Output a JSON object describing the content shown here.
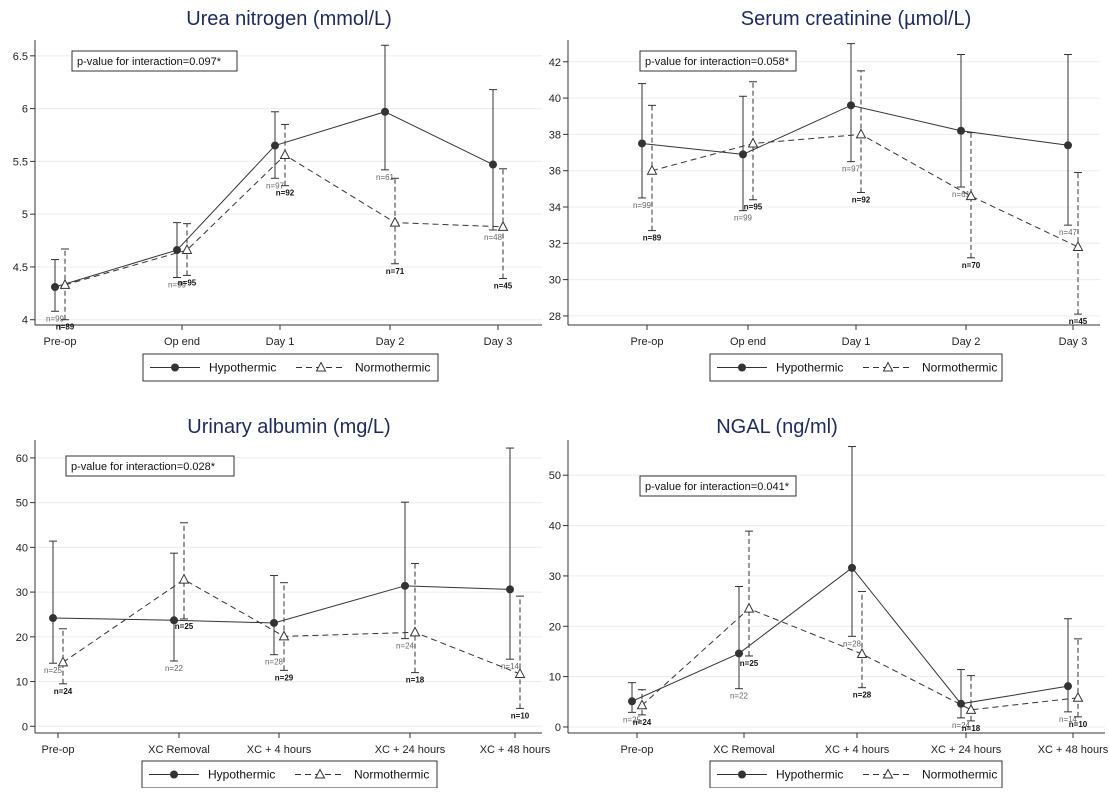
{
  "legend": {
    "hypo_label": "Hypothermic",
    "normo_label": "Normothermic"
  },
  "chart_data": [
    {
      "type": "line",
      "title": "Urea nitrogen (mmol/L)",
      "annotation": "p-value for interaction=0.097*",
      "categories": [
        "Pre-op",
        "Op end",
        "Day 1",
        "Day 2",
        "Day 3"
      ],
      "ylim": [
        3.95,
        6.65
      ],
      "yticks": [
        4,
        4.5,
        5,
        5.5,
        6,
        6.5
      ],
      "ytick_labels": [
        "4",
        "4.5",
        "5",
        "5.5",
        "6",
        "6.5"
      ],
      "grid": true,
      "legend_position": "bottom",
      "series": [
        {
          "name": "Hypothermic",
          "style": "solid",
          "marker": "circle",
          "values": [
            4.31,
            4.66,
            5.65,
            5.97,
            5.47
          ],
          "lower": [
            4.08,
            4.4,
            5.34,
            5.42,
            4.85
          ],
          "upper": [
            4.57,
            4.92,
            5.97,
            6.6,
            6.18
          ],
          "n": [
            "n=99",
            "n=99",
            "n=97",
            "n=61",
            "n=48"
          ]
        },
        {
          "name": "Normothermic",
          "style": "dashed",
          "marker": "triangle",
          "values": [
            4.33,
            4.66,
            5.56,
            4.92,
            4.88
          ],
          "lower": [
            4.0,
            4.42,
            5.27,
            4.53,
            4.39
          ],
          "upper": [
            4.67,
            4.91,
            5.85,
            5.34,
            5.43
          ],
          "n": [
            "n=89",
            "n=95",
            "n=92",
            "n=71",
            "n=45"
          ]
        }
      ]
    },
    {
      "type": "line",
      "title": "Serum creatinine (µmol/L)",
      "annotation": "p-value for interaction=0.058*",
      "categories": [
        "Pre-op",
        "Op end",
        "Day 1",
        "Day 2",
        "Day 3"
      ],
      "ylim": [
        27.5,
        43.2
      ],
      "yticks": [
        28,
        30,
        32,
        34,
        36,
        38,
        40,
        42
      ],
      "ytick_labels": [
        "28",
        "30",
        "32",
        "34",
        "36",
        "38",
        "40",
        "42"
      ],
      "grid": true,
      "legend_position": "bottom",
      "series": [
        {
          "name": "Hypothermic",
          "style": "solid",
          "marker": "circle",
          "values": [
            37.5,
            36.9,
            39.6,
            38.2,
            37.4
          ],
          "lower": [
            34.5,
            33.8,
            36.5,
            35.1,
            33.0
          ],
          "upper": [
            40.8,
            40.1,
            43.0,
            42.4,
            42.4
          ],
          "n": [
            "n=99",
            "n=99",
            "n=97",
            "n=61",
            "n=47"
          ]
        },
        {
          "name": "Normothermic",
          "style": "dashed",
          "marker": "triangle",
          "values": [
            36.0,
            37.5,
            38.0,
            34.6,
            31.8
          ],
          "lower": [
            32.7,
            34.4,
            34.8,
            31.2,
            28.1
          ],
          "upper": [
            39.6,
            40.9,
            41.5,
            38.1,
            35.9
          ],
          "n": [
            "n=89",
            "n=95",
            "n=92",
            "n=70",
            "n=45"
          ]
        }
      ]
    },
    {
      "type": "line",
      "title": "Urinary albumin (mg/L)",
      "annotation": "p-value for interaction=0.028*",
      "categories": [
        "Pre-op",
        "XC Removal",
        "XC + 4 hours",
        "XC + 24 hours",
        "XC + 48 hours"
      ],
      "ylim": [
        -1.5,
        64
      ],
      "yticks": [
        0,
        10,
        20,
        30,
        40,
        50,
        60
      ],
      "ytick_labels": [
        "0",
        "10",
        "20",
        "30",
        "40",
        "50",
        "60"
      ],
      "grid": true,
      "legend_position": "bottom",
      "series": [
        {
          "name": "Hypothermic",
          "style": "solid",
          "marker": "circle",
          "values": [
            24.2,
            23.7,
            23.1,
            31.4,
            30.6
          ],
          "lower": [
            14.1,
            14.6,
            16.0,
            19.6,
            15.0
          ],
          "upper": [
            41.4,
            38.7,
            33.7,
            50.1,
            62.2
          ],
          "n": [
            "n=25",
            "n=22",
            "n=28",
            "n=24",
            "n=14"
          ]
        },
        {
          "name": "Normothermic",
          "style": "dashed",
          "marker": "triangle",
          "values": [
            14.3,
            32.8,
            20.1,
            21.0,
            11.7
          ],
          "lower": [
            9.5,
            24.0,
            12.5,
            12.0,
            4.0
          ],
          "upper": [
            21.8,
            45.5,
            32.1,
            36.4,
            29.1
          ],
          "n": [
            "n=24",
            "n=25",
            "n=29",
            "n=18",
            "n=10"
          ]
        }
      ]
    },
    {
      "type": "line",
      "title": "NGAL (ng/ml)",
      "annotation": "p-value for interaction=0.041*",
      "categories": [
        "Pre-op",
        "XC Removal",
        "XC + 4 hours",
        "XC + 24 hours",
        "XC + 48 hours"
      ],
      "ylim": [
        -1.2,
        57
      ],
      "yticks": [
        0,
        10,
        20,
        30,
        40,
        50
      ],
      "ytick_labels": [
        "0",
        "10",
        "20",
        "30",
        "40",
        "50"
      ],
      "grid": true,
      "legend_position": "bottom",
      "series": [
        {
          "name": "Hypothermic",
          "style": "solid",
          "marker": "circle",
          "values": [
            5.1,
            14.6,
            31.6,
            4.6,
            8.1
          ],
          "lower": [
            2.9,
            7.6,
            18.0,
            1.8,
            3.0
          ],
          "upper": [
            8.8,
            27.9,
            55.7,
            11.4,
            21.5
          ],
          "n": [
            "n=25",
            "n=22",
            "n=28",
            "n=24",
            "n=14"
          ]
        },
        {
          "name": "Normothermic",
          "style": "dashed",
          "marker": "triangle",
          "values": [
            4.3,
            23.5,
            14.5,
            3.4,
            5.8
          ],
          "lower": [
            2.4,
            14.1,
            7.8,
            1.2,
            2.0
          ],
          "upper": [
            7.4,
            38.9,
            26.9,
            10.2,
            17.5
          ],
          "n": [
            "n=24",
            "n=25",
            "n=28",
            "n=18",
            "n=10"
          ]
        }
      ]
    }
  ]
}
